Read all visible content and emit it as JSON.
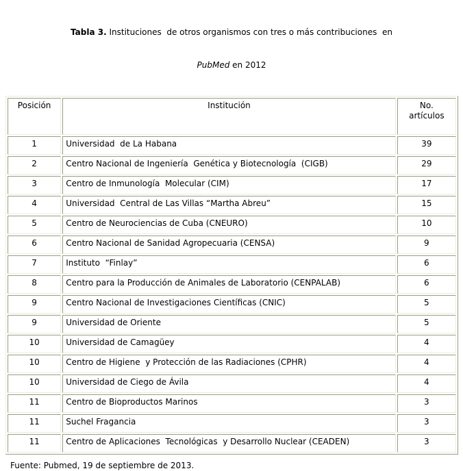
{
  "caption": {
    "bold_prefix": "Tabla 3.",
    "line1_rest": " Instituciones  de otros organismos con tres o más contribuciones  en",
    "line2_italic": "PubMed",
    "line2_rest": " en 2012"
  },
  "table": {
    "headers": [
      "Posición",
      "Institución",
      "No.\nartículos"
    ],
    "rows": [
      {
        "pos": "1",
        "institution": "Universidad  de La Habana",
        "articles": "39"
      },
      {
        "pos": "2",
        "institution": "Centro Nacional de Ingeniería  Genética y Biotecnología  (CIGB)",
        "articles": "29"
      },
      {
        "pos": "3",
        "institution": "Centro de Inmunología  Molecular (CIM)",
        "articles": "17"
      },
      {
        "pos": "4",
        "institution": "Universidad  Central de Las Villas “Martha Abreu”",
        "articles": "15"
      },
      {
        "pos": "5",
        "institution": "Centro de Neurociencias de Cuba (CNEURO)",
        "articles": "10"
      },
      {
        "pos": "6",
        "institution": "Centro Nacional de Sanidad Agropecuaria (CENSA)",
        "articles": "9"
      },
      {
        "pos": "7",
        "institution": "Instituto  “Finlay”",
        "articles": "6"
      },
      {
        "pos": "8",
        "institution": "Centro para la Producción de Animales de Laboratorio (CENPALAB)",
        "articles": "6"
      },
      {
        "pos": "9",
        "institution": "Centro Nacional de Investigaciones Científicas (CNIC)",
        "articles": "5"
      },
      {
        "pos": "9",
        "institution": "Universidad de Oriente",
        "articles": "5"
      },
      {
        "pos": "10",
        "institution": "Universidad de Camagüey",
        "articles": "4"
      },
      {
        "pos": "10",
        "institution": "Centro de Higiene  y Protección de las Radiaciones (CPHR)",
        "articles": "4"
      },
      {
        "pos": "10",
        "institution": "Universidad de Ciego de Ávila",
        "articles": "4"
      },
      {
        "pos": "11",
        "institution": "Centro de Bioproductos Marinos",
        "articles": "3"
      },
      {
        "pos": "11",
        "institution": "Suchel Fragancia",
        "articles": "3"
      },
      {
        "pos": "11",
        "institution": "Centro de Aplicaciones  Tecnológicas  y Desarrollo Nuclear (CEADEN)",
        "articles": "3"
      }
    ]
  },
  "footer": {
    "source": "Fuente: Pubmed, 19 de septiembre de 2013."
  },
  "colors": {
    "border_dark": "#9b9b84",
    "border_light": "#ececdd",
    "text": "#000000",
    "background": "#ffffff"
  }
}
